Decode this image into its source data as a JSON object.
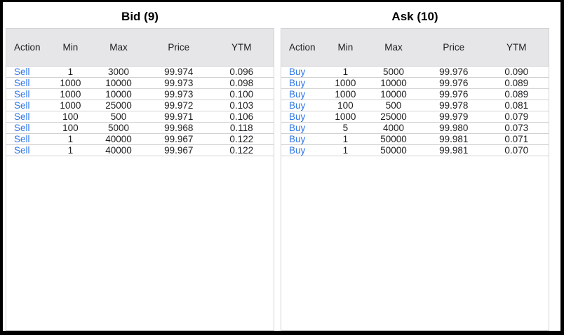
{
  "bid": {
    "title": "Bid (9)",
    "columns": [
      "Action",
      "Min",
      "Max",
      "Price",
      "YTM"
    ],
    "rows": [
      {
        "action": "Sell",
        "min": "1",
        "max": "3000",
        "price": "99.974",
        "ytm": "0.096"
      },
      {
        "action": "Sell",
        "min": "1000",
        "max": "10000",
        "price": "99.973",
        "ytm": "0.098"
      },
      {
        "action": "Sell",
        "min": "1000",
        "max": "10000",
        "price": "99.973",
        "ytm": "0.100"
      },
      {
        "action": "Sell",
        "min": "1000",
        "max": "25000",
        "price": "99.972",
        "ytm": "0.103"
      },
      {
        "action": "Sell",
        "min": "100",
        "max": "500",
        "price": "99.971",
        "ytm": "0.106"
      },
      {
        "action": "Sell",
        "min": "100",
        "max": "5000",
        "price": "99.968",
        "ytm": "0.118"
      },
      {
        "action": "Sell",
        "min": "1",
        "max": "40000",
        "price": "99.967",
        "ytm": "0.122"
      },
      {
        "action": "Sell",
        "min": "1",
        "max": "40000",
        "price": "99.967",
        "ytm": "0.122"
      }
    ]
  },
  "ask": {
    "title": "Ask (10)",
    "columns": [
      "Action",
      "Min",
      "Max",
      "Price",
      "YTM"
    ],
    "rows": [
      {
        "action": "Buy",
        "min": "1",
        "max": "5000",
        "price": "99.976",
        "ytm": "0.090"
      },
      {
        "action": "Buy",
        "min": "1000",
        "max": "10000",
        "price": "99.976",
        "ytm": "0.089"
      },
      {
        "action": "Buy",
        "min": "1000",
        "max": "10000",
        "price": "99.976",
        "ytm": "0.089"
      },
      {
        "action": "Buy",
        "min": "100",
        "max": "500",
        "price": "99.978",
        "ytm": "0.081"
      },
      {
        "action": "Buy",
        "min": "1000",
        "max": "25000",
        "price": "99.979",
        "ytm": "0.079"
      },
      {
        "action": "Buy",
        "min": "5",
        "max": "4000",
        "price": "99.980",
        "ytm": "0.073"
      },
      {
        "action": "Buy",
        "min": "1",
        "max": "50000",
        "price": "99.981",
        "ytm": "0.071"
      },
      {
        "action": "Buy",
        "min": "1",
        "max": "50000",
        "price": "99.981",
        "ytm": "0.070"
      }
    ]
  },
  "colors": {
    "link_blue": "#2e76e8",
    "header_bg": "#e6e6e8",
    "border_gray": "#d2d2d5"
  }
}
